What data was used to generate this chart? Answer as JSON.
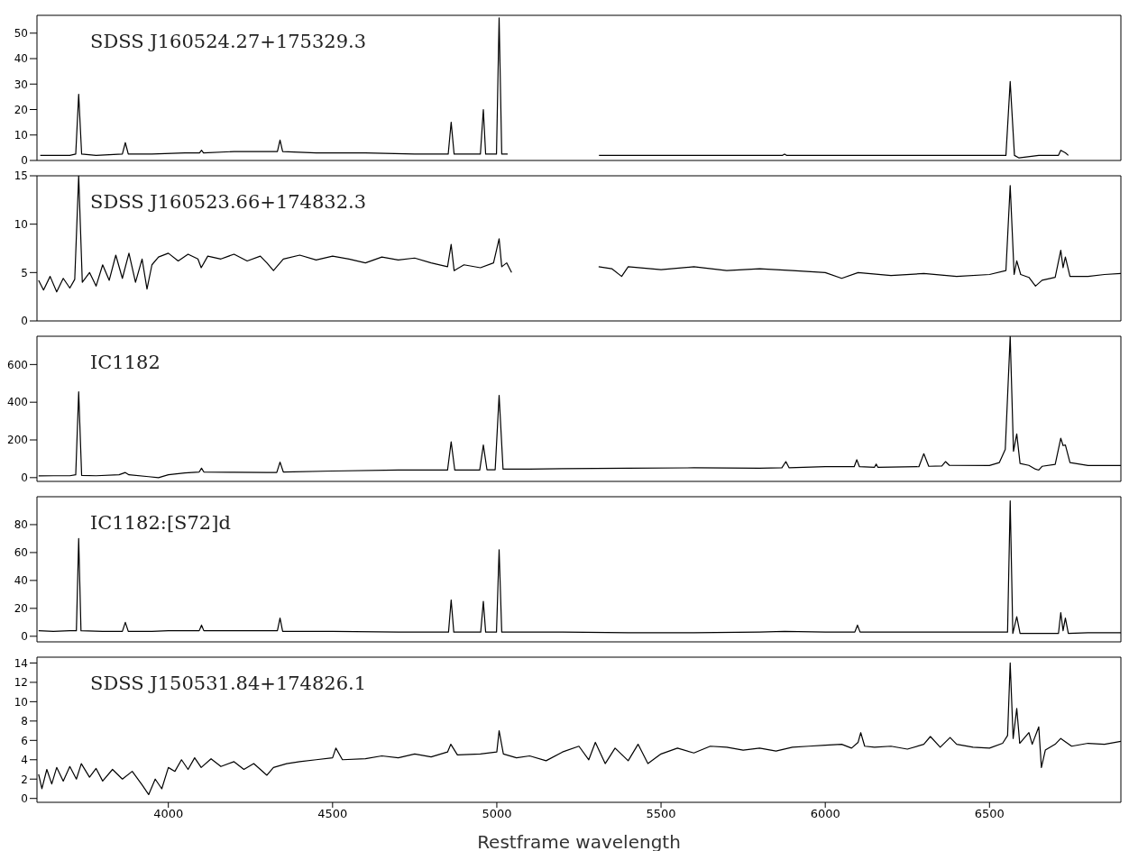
{
  "chart_data": [
    {
      "type": "line",
      "title": "SDSS J160524.27+175329.3",
      "xlim": [
        3600,
        6900
      ],
      "xticks": [
        4000,
        4500,
        5000,
        5500,
        6000,
        6500
      ],
      "ylim": [
        0,
        57
      ],
      "yticks": [
        0,
        10,
        20,
        30,
        40,
        50
      ],
      "tick_labels": "y",
      "series": [
        {
          "color": "#000000",
          "x": [
            3610,
            3650,
            3700,
            3718,
            3727,
            3736,
            3780,
            3860,
            3869,
            3878,
            3950,
            4050,
            4095,
            4101,
            4107,
            4200,
            4300,
            4332,
            4340,
            4348,
            4450,
            4600,
            4750,
            4852,
            4861,
            4870,
            4950,
            4959,
            4966,
            4999,
            5007,
            5015,
            5033,
            5150,
            5311,
            5500,
            5700,
            5870,
            5876,
            5882,
            6100,
            6300,
            6500,
            6550,
            6563,
            6576,
            6590,
            6650,
            6710,
            6717,
            6731,
            6740
          ],
          "values": [
            2,
            2,
            2,
            2.5,
            26,
            2.5,
            2,
            2.5,
            7,
            2.5,
            2.5,
            3,
            3,
            4,
            3,
            3.5,
            3.5,
            3.5,
            8,
            3.5,
            3,
            3,
            2.5,
            2.5,
            15,
            2.5,
            2.5,
            20,
            2.5,
            2.5,
            56,
            2.5,
            2.5,
            null,
            2,
            2,
            2,
            2,
            2.5,
            2,
            2,
            2,
            2,
            2,
            31,
            2,
            1,
            2,
            2,
            4,
            3,
            2
          ]
        }
      ]
    },
    {
      "type": "line",
      "title": "SDSS J160523.66+174832.3",
      "xlim": [
        3600,
        6900
      ],
      "xticks": [
        4000,
        4500,
        5000,
        5500,
        6000,
        6500
      ],
      "ylim": [
        0,
        15
      ],
      "yticks": [
        0,
        5,
        10,
        15
      ],
      "tick_labels": "y",
      "series": [
        {
          "color": "#000000",
          "x": [
            3605,
            3620,
            3640,
            3660,
            3680,
            3700,
            3715,
            3727,
            3738,
            3760,
            3780,
            3800,
            3820,
            3840,
            3860,
            3880,
            3900,
            3920,
            3935,
            3950,
            3970,
            4000,
            4030,
            4060,
            4090,
            4100,
            4120,
            4160,
            4200,
            4240,
            4280,
            4300,
            4320,
            4350,
            4400,
            4450,
            4500,
            4550,
            4600,
            4650,
            4700,
            4750,
            4800,
            4850,
            4861,
            4870,
            4900,
            4950,
            4990,
            5007,
            5015,
            5030,
            5045,
            5150,
            5310,
            5350,
            5380,
            5400,
            5500,
            5600,
            5700,
            5800,
            5900,
            6000,
            6050,
            6100,
            6200,
            6300,
            6400,
            6500,
            6550,
            6563,
            6575,
            6583,
            6595,
            6620,
            6640,
            6660,
            6700,
            6717,
            6724,
            6731,
            6745,
            6800,
            6850,
            6900
          ],
          "values": [
            4.2,
            3.2,
            4.6,
            3.0,
            4.4,
            3.4,
            4.3,
            15,
            4.0,
            5.0,
            3.6,
            5.8,
            4.2,
            6.8,
            4.4,
            7.0,
            4.0,
            6.4,
            3.3,
            5.8,
            6.6,
            7.0,
            6.2,
            6.9,
            6.4,
            5.5,
            6.7,
            6.4,
            6.9,
            6.2,
            6.7,
            6.0,
            5.2,
            6.4,
            6.8,
            6.3,
            6.7,
            6.4,
            6.0,
            6.6,
            6.3,
            6.5,
            6.0,
            5.6,
            7.9,
            5.2,
            5.8,
            5.5,
            6.0,
            8.5,
            5.6,
            6.0,
            5.0,
            null,
            5.6,
            5.4,
            4.6,
            5.6,
            5.3,
            5.6,
            5.2,
            5.4,
            5.2,
            5.0,
            4.4,
            5.0,
            4.7,
            4.9,
            4.6,
            4.8,
            5.2,
            14,
            4.8,
            6.2,
            4.8,
            4.5,
            3.6,
            4.2,
            4.5,
            7.3,
            5.5,
            6.6,
            4.6,
            4.6,
            4.8,
            4.9
          ]
        }
      ]
    },
    {
      "type": "line",
      "title": "IC1182",
      "xlim": [
        3600,
        6900
      ],
      "xticks": [
        4000,
        4500,
        5000,
        5500,
        6000,
        6500
      ],
      "ylim": [
        -20,
        750
      ],
      "yticks": [
        0,
        200,
        400,
        600
      ],
      "tick_labels": "y",
      "series": [
        {
          "color": "#000000",
          "x": [
            3605,
            3650,
            3700,
            3718,
            3727,
            3736,
            3780,
            3850,
            3869,
            3880,
            3940,
            3970,
            4000,
            4050,
            4094,
            4101,
            4108,
            4200,
            4300,
            4330,
            4340,
            4350,
            4500,
            4700,
            4850,
            4861,
            4872,
            4948,
            4959,
            4970,
            4995,
            5007,
            5019,
            5100,
            5200,
            5400,
            5600,
            5800,
            5868,
            5880,
            5890,
            6000,
            6088,
            6096,
            6104,
            6150,
            6155,
            6160,
            6285,
            6300,
            6315,
            6355,
            6366,
            6378,
            6500,
            6530,
            6548,
            6563,
            6573,
            6583,
            6593,
            6620,
            6640,
            6650,
            6660,
            6700,
            6717,
            6724,
            6731,
            6745,
            6800,
            6900
          ],
          "values": [
            9,
            10,
            10,
            15,
            455,
            12,
            10,
            15,
            27,
            15,
            5,
            0,
            15,
            25,
            30,
            50,
            30,
            28,
            27,
            27,
            82,
            30,
            35,
            40,
            40,
            190,
            40,
            40,
            173,
            42,
            42,
            436,
            45,
            45,
            48,
            50,
            52,
            50,
            52,
            85,
            52,
            58,
            58,
            95,
            58,
            55,
            72,
            55,
            58,
            127,
            60,
            62,
            85,
            65,
            64,
            80,
            150,
            750,
            140,
            232,
            75,
            65,
            45,
            40,
            60,
            70,
            209,
            170,
            173,
            80,
            64,
            64
          ]
        }
      ]
    },
    {
      "type": "line",
      "title": "IC1182:[S72]d",
      "xlim": [
        3600,
        6900
      ],
      "xticks": [
        4000,
        4500,
        5000,
        5500,
        6000,
        6500
      ],
      "ylim": [
        -4,
        100
      ],
      "yticks": [
        0,
        20,
        40,
        60,
        80
      ],
      "tick_labels": "y",
      "series": [
        {
          "color": "#000000",
          "x": [
            3605,
            3650,
            3700,
            3720,
            3727,
            3734,
            3800,
            3860,
            3869,
            3878,
            3950,
            4000,
            4094,
            4101,
            4108,
            4200,
            4300,
            4332,
            4340,
            4348,
            4500,
            4700,
            4853,
            4861,
            4869,
            4951,
            4959,
            4966,
            4999,
            5007,
            5015,
            5200,
            5400,
            5600,
            5800,
            5876,
            6000,
            6090,
            6098,
            6106,
            6300,
            6500,
            6555,
            6563,
            6571,
            6583,
            6593,
            6650,
            6710,
            6717,
            6724,
            6731,
            6740,
            6800,
            6900
          ],
          "values": [
            4,
            3.5,
            4,
            4,
            70,
            4,
            3.5,
            3.5,
            10,
            3.5,
            3.5,
            4,
            4,
            8,
            4,
            4,
            4,
            4,
            13,
            3.5,
            3.5,
            3,
            3,
            26,
            3,
            3,
            25,
            3,
            3,
            62,
            3,
            3,
            2.5,
            2.5,
            3,
            3.5,
            3,
            3,
            8,
            3,
            3,
            3,
            3,
            97,
            2,
            14,
            2,
            2,
            2,
            17,
            4,
            13,
            2,
            2.5,
            2.5
          ]
        }
      ]
    },
    {
      "type": "line",
      "title": "SDSS J150531.84+174826.1",
      "xlabel": "Restframe wavelength",
      "xlim": [
        3600,
        6900
      ],
      "xticks": [
        4000,
        4500,
        5000,
        5500,
        6000,
        6500
      ],
      "ylim": [
        -0.4,
        14.6
      ],
      "yticks": [
        0,
        2,
        4,
        6,
        8,
        10,
        12,
        14
      ],
      "series": [
        {
          "color": "#000000",
          "x": [
            3605,
            3615,
            3630,
            3645,
            3660,
            3680,
            3700,
            3720,
            3735,
            3760,
            3780,
            3800,
            3830,
            3860,
            3890,
            3920,
            3940,
            3960,
            3980,
            4000,
            4020,
            4040,
            4060,
            4080,
            4100,
            4130,
            4160,
            4200,
            4230,
            4260,
            4300,
            4320,
            4360,
            4400,
            4450,
            4500,
            4510,
            4530,
            4600,
            4650,
            4700,
            4750,
            4800,
            4850,
            4860,
            4880,
            4950,
            5000,
            5007,
            5020,
            5060,
            5100,
            5150,
            5200,
            5250,
            5280,
            5300,
            5330,
            5360,
            5400,
            5430,
            5460,
            5500,
            5550,
            5600,
            5650,
            5700,
            5750,
            5800,
            5850,
            5900,
            5950,
            6000,
            6050,
            6080,
            6100,
            6108,
            6120,
            6150,
            6200,
            6250,
            6300,
            6320,
            6350,
            6380,
            6400,
            6450,
            6500,
            6540,
            6555,
            6563,
            6572,
            6583,
            6592,
            6620,
            6630,
            6650,
            6658,
            6670,
            6700,
            6717,
            6750,
            6800,
            6850,
            6900
          ],
          "values": [
            2.5,
            1.0,
            3.0,
            1.5,
            3.2,
            1.8,
            3.3,
            2.0,
            3.6,
            2.2,
            3.1,
            1.8,
            3.0,
            2.0,
            2.8,
            1.4,
            0.4,
            2.0,
            1.0,
            3.2,
            2.8,
            4.0,
            3.0,
            4.2,
            3.2,
            4.1,
            3.3,
            3.8,
            3.0,
            3.6,
            2.4,
            3.2,
            3.6,
            3.8,
            4.0,
            4.2,
            5.2,
            4.0,
            4.1,
            4.4,
            4.2,
            4.6,
            4.3,
            4.8,
            5.6,
            4.5,
            4.6,
            4.8,
            7.0,
            4.6,
            4.2,
            4.4,
            3.9,
            4.8,
            5.4,
            4.0,
            5.8,
            3.6,
            5.2,
            3.9,
            5.6,
            3.6,
            4.6,
            5.2,
            4.7,
            5.4,
            5.3,
            5.0,
            5.2,
            4.9,
            5.3,
            5.4,
            5.5,
            5.6,
            5.2,
            5.8,
            6.8,
            5.4,
            5.3,
            5.4,
            5.1,
            5.6,
            6.4,
            5.3,
            6.3,
            5.6,
            5.3,
            5.2,
            5.7,
            6.5,
            14,
            6.2,
            9.3,
            5.7,
            6.8,
            5.6,
            7.4,
            3.2,
            5.0,
            5.6,
            6.2,
            5.4,
            5.7,
            5.6,
            5.9
          ]
        }
      ]
    }
  ]
}
